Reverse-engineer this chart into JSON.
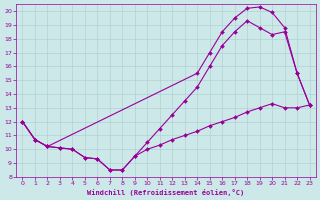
{
  "xlabel": "Windchill (Refroidissement éolien,°C)",
  "bg_color": "#cce8e8",
  "line_color": "#990099",
  "xlim": [
    -0.5,
    23.5
  ],
  "ylim": [
    8,
    20.5
  ],
  "xticks": [
    0,
    1,
    2,
    3,
    4,
    5,
    6,
    7,
    8,
    9,
    10,
    11,
    12,
    13,
    14,
    15,
    16,
    17,
    18,
    19,
    20,
    21,
    22,
    23
  ],
  "yticks": [
    8,
    9,
    10,
    11,
    12,
    13,
    14,
    15,
    16,
    17,
    18,
    19,
    20
  ],
  "line1_x": [
    0,
    1,
    2,
    3,
    4,
    5,
    6,
    7,
    8,
    9,
    10,
    11,
    12,
    13,
    14,
    15,
    16,
    17,
    18,
    19,
    20,
    21,
    22,
    23
  ],
  "line1_y": [
    12,
    10.7,
    10.2,
    10.1,
    10.0,
    9.4,
    9.3,
    8.5,
    8.5,
    9.5,
    10.0,
    10.3,
    10.7,
    11.0,
    11.3,
    11.7,
    12.0,
    12.3,
    12.7,
    13.0,
    13.3,
    13.0,
    13.0,
    13.2
  ],
  "line2_x": [
    0,
    1,
    2,
    3,
    4,
    5,
    6,
    7,
    8,
    9,
    10,
    11,
    12,
    13,
    14,
    15,
    16,
    17,
    18,
    19,
    20,
    21,
    22,
    23
  ],
  "line2_y": [
    12,
    10.7,
    10.2,
    10.1,
    10.0,
    9.4,
    9.3,
    8.5,
    8.5,
    9.5,
    10.5,
    11.5,
    12.5,
    13.5,
    14.5,
    16.0,
    17.5,
    18.5,
    19.3,
    18.8,
    18.3,
    18.5,
    15.5,
    13.2
  ],
  "line3_x": [
    0,
    1,
    2,
    14,
    15,
    16,
    17,
    18,
    19,
    20,
    21,
    22,
    23
  ],
  "line3_y": [
    12,
    10.7,
    10.2,
    15.5,
    17.0,
    18.5,
    19.5,
    20.2,
    20.3,
    19.9,
    18.8,
    15.5,
    13.2
  ]
}
